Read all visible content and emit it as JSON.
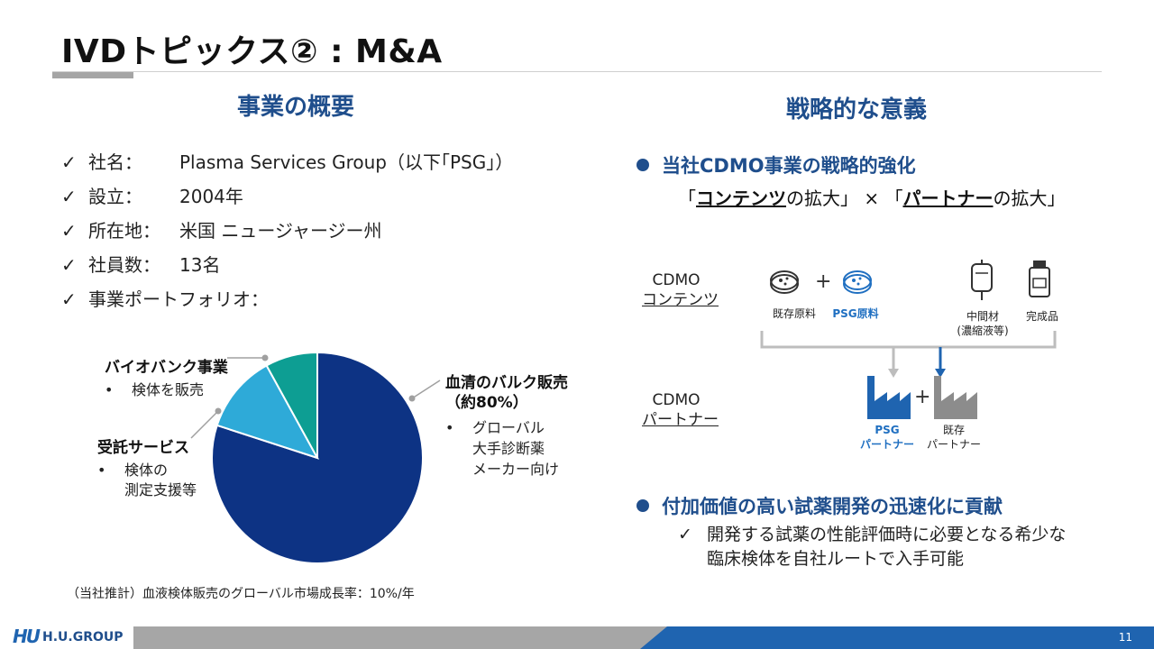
{
  "title": "IVDトピックス② : M&A",
  "left": {
    "heading": "事業の概要",
    "items": [
      {
        "label": "社名：",
        "value": "Plasma Services Group（以下｢PSG｣）"
      },
      {
        "label": "設立：",
        "value": "2004年"
      },
      {
        "label": "所在地：",
        "value": "米国 ニュージャージー州"
      },
      {
        "label": "社員数：",
        "value": "13名"
      },
      {
        "label": "事業ポートフォリオ：",
        "value": ""
      }
    ],
    "check_mark": "✓",
    "note": "（当社推計）血液検体販売のグローバル市場成長率：10%/年"
  },
  "chart_data": {
    "type": "pie",
    "slices": [
      {
        "name": "血清のバルク販売",
        "value": 80,
        "label": "（約80%）",
        "color": "#0d3384",
        "bullet": "•",
        "detail": [
          "グローバル",
          "大手診断薬",
          "メーカー向け"
        ]
      },
      {
        "name": "受託サービス",
        "value": 12,
        "color": "#2eaad8",
        "bullet": "•",
        "detail": [
          "検体の",
          "測定支援等"
        ]
      },
      {
        "name": "バイオバンク事業",
        "value": 8,
        "color": "#0d9e93",
        "bullet": "•",
        "detail": [
          "検体を販売"
        ]
      }
    ]
  },
  "right": {
    "heading": "戦略的な意義",
    "point1": "当社CDMO事業の戦略的強化",
    "combo": {
      "open1": "「",
      "bold1": "コンテンツ",
      "rest1": "の拡大」 × 「",
      "bold2": "パートナー",
      "rest2": "の拡大」"
    },
    "cdmo_contents": [
      "CDMO",
      "コンテンツ"
    ],
    "cdmo_partner": [
      "CDMO",
      "パートナー"
    ],
    "plus": "+",
    "existing_material": "既存原料",
    "psg_material": "PSG原料",
    "intermediate": [
      "中間材",
      "(濃縮液等)"
    ],
    "finished": "完成品",
    "psg_partner": [
      "PSG",
      "パートナー"
    ],
    "existing_partner": [
      "既存",
      "パートナー"
    ],
    "point2": "付加価値の高い試薬開発の迅速化に貢献",
    "check_mark": "✓",
    "point2_detail": [
      "開発する試薬の性能評価時に必要となる希少な",
      "臨床検体を自社ルートで入手可能"
    ]
  },
  "footer": {
    "logo_mark": "HU",
    "logo_text": "H.U.GROUP",
    "page": "11"
  },
  "colors": {
    "accent": "#1f4e8c",
    "brand_blue": "#1f64b0",
    "psg_blue": "#1f6fc1",
    "gray": "#a6a6a6"
  }
}
